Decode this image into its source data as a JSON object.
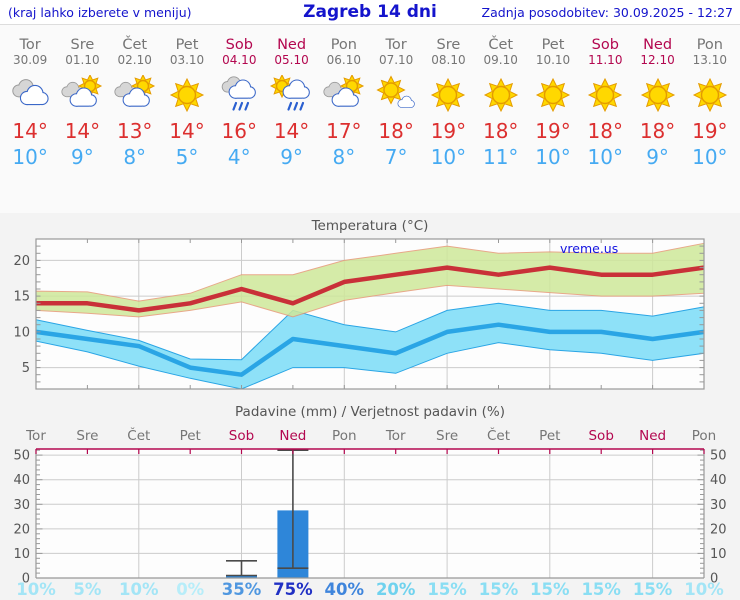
{
  "header": {
    "left": "(kraj lahko izberete v meniju)",
    "title": "Zagreb 14 dni",
    "updated": "Zadnja posodobitev: 30.09.2025 - 12:27"
  },
  "colors": {
    "accent_blue": "#1414cc",
    "weekday_gray": "#757575",
    "weekend_crimson": "#b3074f",
    "high_temp_red": "#dc2f2f",
    "low_temp_blue": "#45aaf2",
    "bar_blue": "#2e86d9",
    "chart_border": "#999999",
    "grid_gray": "#cccccc",
    "axis_label_gray": "#555555"
  },
  "days": [
    {
      "name": "Tor",
      "date": "30.09",
      "weekend": false,
      "icon": "cloudy",
      "high": "14°",
      "low": "10°"
    },
    {
      "name": "Sre",
      "date": "01.10",
      "weekend": false,
      "icon": "partly-cloudy",
      "high": "14°",
      "low": "9°"
    },
    {
      "name": "Čet",
      "date": "02.10",
      "weekend": false,
      "icon": "partly-cloudy",
      "high": "13°",
      "low": "8°"
    },
    {
      "name": "Pet",
      "date": "03.10",
      "weekend": false,
      "icon": "sunny",
      "high": "14°",
      "low": "5°"
    },
    {
      "name": "Sob",
      "date": "04.10",
      "weekend": true,
      "icon": "rain",
      "high": "16°",
      "low": "4°"
    },
    {
      "name": "Ned",
      "date": "05.10",
      "weekend": true,
      "icon": "sun-rain",
      "high": "14°",
      "low": "9°"
    },
    {
      "name": "Pon",
      "date": "06.10",
      "weekend": false,
      "icon": "partly-cloudy",
      "high": "17°",
      "low": "8°"
    },
    {
      "name": "Tor",
      "date": "07.10",
      "weekend": false,
      "icon": "mostly-sunny",
      "high": "18°",
      "low": "7°"
    },
    {
      "name": "Sre",
      "date": "08.10",
      "weekend": false,
      "icon": "sunny",
      "high": "19°",
      "low": "10°"
    },
    {
      "name": "Čet",
      "date": "09.10",
      "weekend": false,
      "icon": "sunny",
      "high": "18°",
      "low": "11°"
    },
    {
      "name": "Pet",
      "date": "10.10",
      "weekend": false,
      "icon": "sunny",
      "high": "19°",
      "low": "10°"
    },
    {
      "name": "Sob",
      "date": "11.10",
      "weekend": true,
      "icon": "sunny",
      "high": "18°",
      "low": "10°"
    },
    {
      "name": "Ned",
      "date": "12.10",
      "weekend": true,
      "icon": "sunny",
      "high": "18°",
      "low": "9°"
    },
    {
      "name": "Pon",
      "date": "13.10",
      "weendend": false,
      "weekend": false,
      "icon": "sunny",
      "high": "19°",
      "low": "10°"
    }
  ],
  "chart_data": [
    {
      "type": "line",
      "title": "Temperatura (°C)",
      "watermark": "vreme.us",
      "categories": [
        "Tor",
        "Sre",
        "Čet",
        "Pet",
        "Sob",
        "Ned",
        "Pon",
        "Tor",
        "Sre",
        "Čet",
        "Pet",
        "Sob",
        "Ned",
        "Pon"
      ],
      "ylim": [
        2,
        23
      ],
      "yticks": [
        5,
        10,
        15,
        20
      ],
      "grid_x_day_indices": [
        2,
        4,
        6,
        8,
        10,
        12
      ],
      "legend_position": "none",
      "series": [
        {
          "name": "max-temp-range",
          "type": "band",
          "fill": "#cfe89a",
          "stroke": "#e59a76",
          "upper": [
            15.7,
            15.6,
            14.3,
            15.4,
            18,
            18,
            20,
            21,
            22,
            21,
            21.2,
            21,
            21,
            22.4
          ],
          "lower": [
            13,
            12.6,
            12.1,
            13,
            14.2,
            12.1,
            14.4,
            15.5,
            16.5,
            16,
            15.5,
            15,
            15,
            15.4
          ]
        },
        {
          "name": "min-temp-range",
          "type": "band",
          "fill": "#8ee1f8",
          "stroke": "#2aa5e5",
          "upper": [
            11.7,
            10.2,
            8.8,
            6.2,
            6.1,
            13,
            11,
            10,
            13,
            14,
            13,
            13,
            12.2,
            13.5
          ],
          "lower": [
            8.7,
            7.2,
            5.2,
            3.5,
            2,
            5,
            5,
            4.2,
            7,
            8.5,
            7.5,
            7,
            6,
            7
          ]
        },
        {
          "name": "max-temp",
          "type": "line",
          "color": "#c93038",
          "width": 4.5,
          "values": [
            14,
            14,
            13,
            14,
            16,
            14,
            17,
            18,
            19,
            18,
            19,
            18,
            18,
            19
          ]
        },
        {
          "name": "min-temp",
          "type": "line",
          "color": "#2aa5e5",
          "width": 4.5,
          "values": [
            10,
            9,
            8,
            5,
            4,
            9,
            8,
            7,
            10,
            11,
            10,
            10,
            9,
            10
          ]
        }
      ]
    },
    {
      "type": "bar",
      "title": "Padavine (mm) / Verjetnost padavin (%)",
      "categories": [
        "Tor",
        "Sre",
        "Čet",
        "Pet",
        "Sob",
        "Ned",
        "Pon",
        "Tor",
        "Sre",
        "Čet",
        "Pet",
        "Sob",
        "Ned",
        "Pon"
      ],
      "weekend_flags": [
        false,
        false,
        false,
        false,
        true,
        true,
        false,
        false,
        false,
        false,
        false,
        true,
        true,
        false
      ],
      "values": [
        0,
        0,
        0,
        0,
        1,
        27.5,
        0,
        0,
        0,
        0,
        0,
        0,
        0,
        0
      ],
      "whiskers": [
        null,
        null,
        null,
        null,
        {
          "low": 1,
          "high": 7
        },
        {
          "low": 4,
          "high": 52
        },
        null,
        null,
        null,
        null,
        null,
        null,
        null,
        null
      ],
      "bar_color": "#2e86d9",
      "whisker_color": "#4a4a4a",
      "top_border_color": "#b3074f",
      "ylim": [
        0,
        52.5
      ],
      "yticks": [
        0,
        10,
        20,
        30,
        40,
        50
      ],
      "grid_x_day_indices": [
        2,
        4,
        6,
        8,
        10,
        12
      ],
      "probabilities": [
        {
          "label": "10%",
          "color": "#a3e5f6"
        },
        {
          "label": "5%",
          "color": "#a3e5f6"
        },
        {
          "label": "10%",
          "color": "#a3e5f6"
        },
        {
          "label": "0%",
          "color": "#b7edf9"
        },
        {
          "label": "35%",
          "color": "#4f97e0"
        },
        {
          "label": "75%",
          "color": "#2030c4"
        },
        {
          "label": "40%",
          "color": "#3f85dc"
        },
        {
          "label": "20%",
          "color": "#6fd2ee"
        },
        {
          "label": "15%",
          "color": "#8adef3"
        },
        {
          "label": "15%",
          "color": "#8adef3"
        },
        {
          "label": "15%",
          "color": "#8adef3"
        },
        {
          "label": "15%",
          "color": "#8adef3"
        },
        {
          "label": "15%",
          "color": "#8adef3"
        },
        {
          "label": "10%",
          "color": "#a3e5f6"
        }
      ]
    }
  ]
}
